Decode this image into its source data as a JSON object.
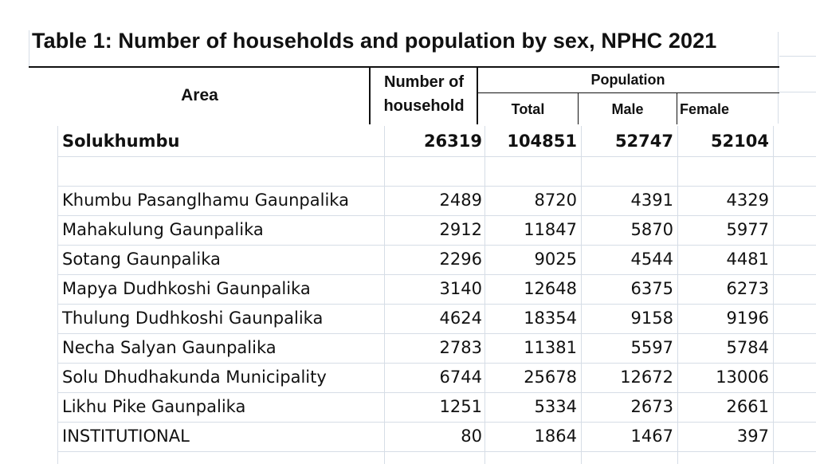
{
  "title": "Table 1: Number of households and population by sex, NPHC 2021",
  "header": {
    "area": "Area",
    "households_line1": "Number of",
    "households_line2": "household",
    "population": "Population",
    "total": "Total",
    "male": "Male",
    "female": "Female"
  },
  "summary": {
    "area": "Solukhumbu",
    "households": "26319",
    "total": "104851",
    "male": "52747",
    "female": "52104"
  },
  "rows": [
    {
      "area": "Khumbu Pasanglhamu Gaunpalika",
      "households": "2489",
      "total": "8720",
      "male": "4391",
      "female": "4329"
    },
    {
      "area": "Mahakulung Gaunpalika",
      "households": "2912",
      "total": "11847",
      "male": "5870",
      "female": "5977"
    },
    {
      "area": "Sotang Gaunpalika",
      "households": "2296",
      "total": "9025",
      "male": "4544",
      "female": "4481"
    },
    {
      "area": "Mapya Dudhkoshi Gaunpalika",
      "households": "3140",
      "total": "12648",
      "male": "6375",
      "female": "6273"
    },
    {
      "area": "Thulung Dudhkoshi Gaunpalika",
      "households": "4624",
      "total": "18354",
      "male": "9158",
      "female": "9196"
    },
    {
      "area": "Necha Salyan Gaunpalika",
      "households": "2783",
      "total": "11381",
      "male": "5597",
      "female": "5784"
    },
    {
      "area": "Solu Dhudhakunda Municipality",
      "households": "6744",
      "total": "25678",
      "male": "12672",
      "female": "13006"
    },
    {
      "area": "Likhu Pike Gaunpalika",
      "households": "1251",
      "total": "5334",
      "male": "2673",
      "female": "2661"
    },
    {
      "area": "INSTITUTIONAL",
      "households": "80",
      "total": "1864",
      "male": "1467",
      "female": "397"
    }
  ]
}
